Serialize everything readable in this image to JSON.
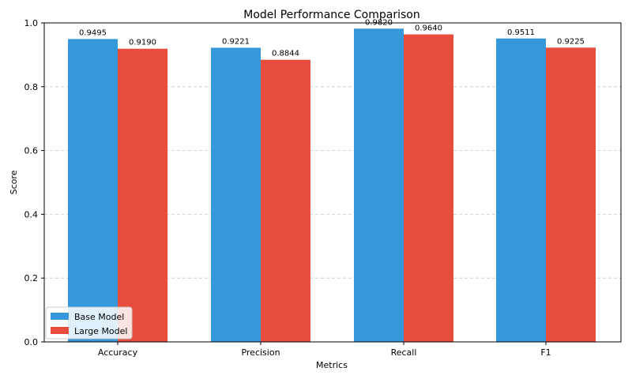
{
  "chart_data": {
    "type": "bar",
    "title": "Model Performance Comparison",
    "xlabel": "Metrics",
    "ylabel": "Score",
    "categories": [
      "Accuracy",
      "Precision",
      "Recall",
      "F1"
    ],
    "series": [
      {
        "name": "Base Model",
        "color": "#3498db",
        "values": [
          0.9495,
          0.9221,
          0.982,
          0.9511
        ],
        "labels": [
          "0.9495",
          "0.9221",
          "0.9820",
          "0.9511"
        ]
      },
      {
        "name": "Large Model",
        "color": "#e74c3c",
        "values": [
          0.919,
          0.8844,
          0.964,
          0.9225
        ],
        "labels": [
          "0.9190",
          "0.8844",
          "0.9640",
          "0.9225"
        ]
      }
    ],
    "ylim": [
      0,
      1.0
    ],
    "yticks": [
      0.0,
      0.2,
      0.4,
      0.6,
      0.8,
      1.0
    ],
    "ytick_labels": [
      "0.0",
      "0.2",
      "0.4",
      "0.6",
      "0.8",
      "1.0"
    ],
    "grid": "y-dashed",
    "legend_position": "lower-left"
  }
}
